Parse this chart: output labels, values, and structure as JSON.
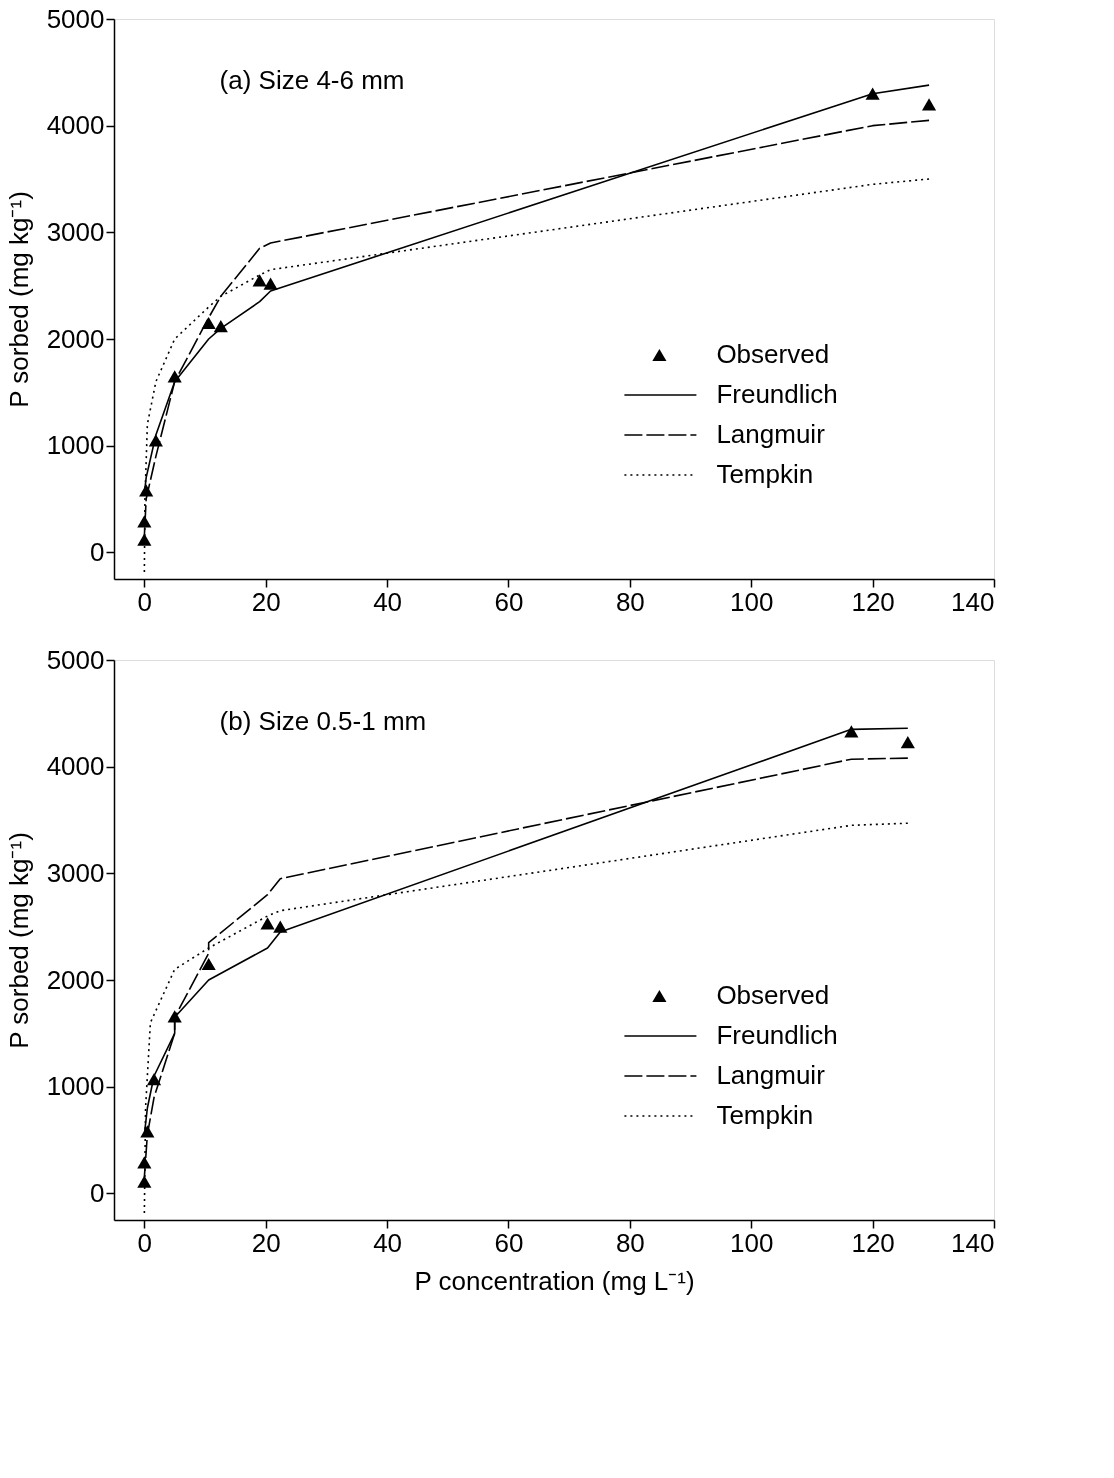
{
  "chart_data": [
    {
      "type": "line",
      "title": "(a) Size 4-6 mm",
      "ylabel": "P sorbed (mg kg⁻¹)",
      "xlim": [
        -5,
        140
      ],
      "ylim": [
        -250,
        5000
      ],
      "xticks": [
        0,
        20,
        40,
        60,
        80,
        100,
        120,
        140
      ],
      "yticks": [
        0,
        1000,
        2000,
        3000,
        4000,
        5000
      ],
      "grid": false,
      "legend": "right",
      "series": [
        {
          "name": "Observed",
          "type": "scatter",
          "marker": "triangle",
          "color": "#000000",
          "x": [
            0,
            0,
            0.3,
            1.9,
            5,
            10.6,
            12.6,
            19,
            20.8,
            120,
            129.3
          ],
          "values": [
            120,
            290,
            580,
            1050,
            1650,
            2150,
            2120,
            2550,
            2520,
            4300,
            4200
          ]
        },
        {
          "name": "Freundlich",
          "line_style": "solid",
          "color": "#000000",
          "x": [
            0,
            0.3,
            1.9,
            5,
            10.6,
            12.6,
            19,
            20.8,
            120,
            129.3
          ],
          "values": [
            550,
            700,
            1100,
            1600,
            2000,
            2100,
            2350,
            2450,
            4300,
            4380
          ]
        },
        {
          "name": "Langmuir",
          "line_style": "dashed",
          "color": "#000000",
          "x": [
            0,
            0.3,
            1.9,
            5,
            10.6,
            12.6,
            19,
            20.8,
            120,
            129.3
          ],
          "values": [
            150,
            500,
            900,
            1600,
            2200,
            2400,
            2850,
            2900,
            4000,
            4050
          ]
        },
        {
          "name": "Tempkin",
          "line_style": "dotted",
          "color": "#000000",
          "x": [
            0,
            0.1,
            0.5,
            1.9,
            5,
            10.6,
            12.6,
            19,
            20.8,
            120,
            129.3
          ],
          "values": [
            -200,
            500,
            1200,
            1600,
            2000,
            2300,
            2400,
            2600,
            2650,
            3450,
            3500
          ]
        }
      ]
    },
    {
      "type": "line",
      "title": "(b) Size 0.5-1 mm",
      "xlabel": "P concentration (mg L⁻¹)",
      "ylabel": "P sorbed (mg kg⁻¹)",
      "xlim": [
        -5,
        140
      ],
      "ylim": [
        -250,
        5000
      ],
      "xticks": [
        0,
        20,
        40,
        60,
        80,
        100,
        120,
        140
      ],
      "yticks": [
        0,
        1000,
        2000,
        3000,
        4000,
        5000
      ],
      "grid": false,
      "legend": "right",
      "series": [
        {
          "name": "Observed",
          "type": "scatter",
          "marker": "triangle",
          "color": "#000000",
          "x": [
            0,
            0,
            0.5,
            1.6,
            5,
            10.6,
            20.3,
            22.4,
            116.5,
            125.8
          ],
          "values": [
            110,
            290,
            580,
            1070,
            1660,
            2150,
            2530,
            2500,
            4330,
            4230
          ]
        },
        {
          "name": "Freundlich",
          "line_style": "solid",
          "color": "#000000",
          "x": [
            0,
            0.5,
            1.6,
            5,
            5,
            10.6,
            20.3,
            22.4,
            116.5,
            125.8
          ],
          "values": [
            550,
            800,
            1100,
            1500,
            1650,
            2000,
            2300,
            2450,
            4350,
            4360
          ]
        },
        {
          "name": "Langmuir",
          "line_style": "dashed",
          "color": "#000000",
          "x": [
            0,
            0.5,
            1.6,
            5,
            5,
            10.6,
            10.6,
            20.3,
            22.4,
            116.5,
            125.8
          ],
          "values": [
            150,
            550,
            900,
            1500,
            1650,
            2250,
            2350,
            2800,
            2950,
            4070,
            4080
          ]
        },
        {
          "name": "Tempkin",
          "line_style": "dotted",
          "color": "#000000",
          "x": [
            0,
            0.2,
            1,
            5,
            10.6,
            20.3,
            22.4,
            116.5,
            125.8
          ],
          "values": [
            -200,
            800,
            1600,
            2100,
            2300,
            2600,
            2650,
            3450,
            3470
          ]
        }
      ]
    }
  ]
}
